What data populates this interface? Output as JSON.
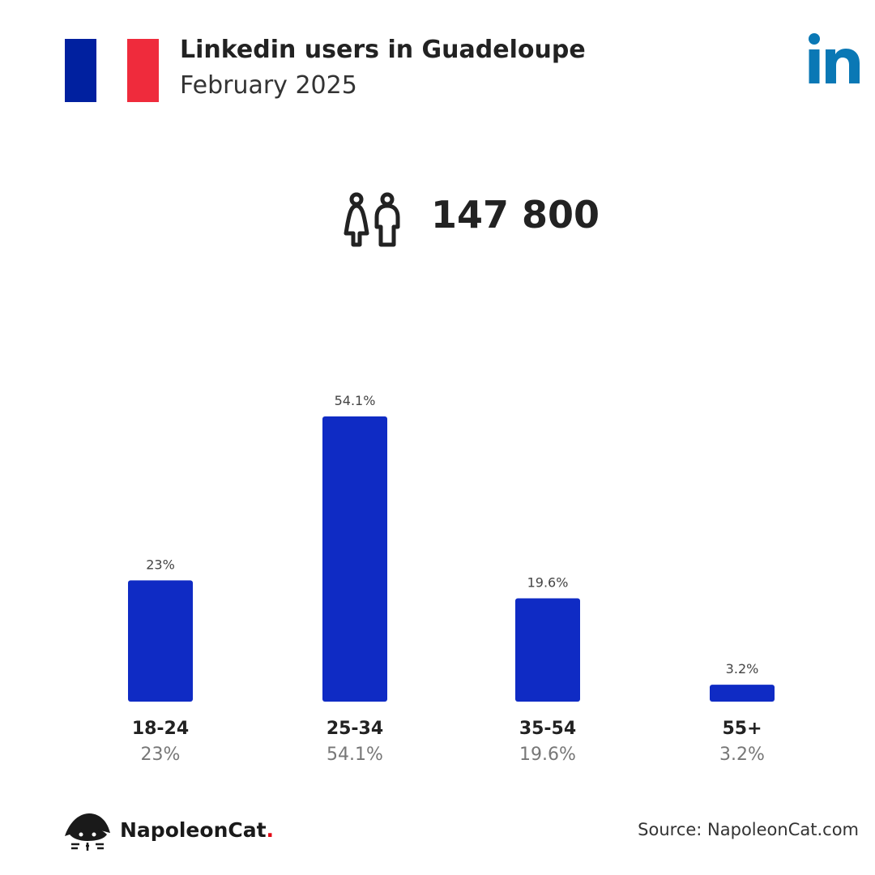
{
  "header": {
    "title": "Linkedin users in Guadeloupe",
    "subtitle": "February 2025",
    "flag_colors": [
      "#00209f",
      "#ffffff",
      "#ef2b3c"
    ],
    "flag_icon": "france-flag-icon",
    "logo_icon": "linkedin-logo-icon",
    "logo_text": "in",
    "logo_color": "#0a78b5"
  },
  "summary": {
    "icon": "people-icon",
    "total_users": "147 800"
  },
  "chart_data": {
    "type": "bar",
    "categories": [
      "18-24",
      "25-34",
      "35-54",
      "55+"
    ],
    "values": [
      23,
      54.1,
      19.6,
      3.2
    ],
    "value_labels": [
      "23%",
      "54.1%",
      "19.6%",
      "3.2%"
    ],
    "bar_color": "#0f2bc4",
    "unit": "%",
    "ylim": [
      0,
      54.1
    ],
    "grid": false,
    "legend": "none"
  },
  "footer": {
    "brand_name": "NapoleonCat",
    "brand_dot": ".",
    "brand_icon": "napoleoncat-logo-icon",
    "brand_accent": "#e30613",
    "source": "Source: NapoleonCat.com"
  }
}
